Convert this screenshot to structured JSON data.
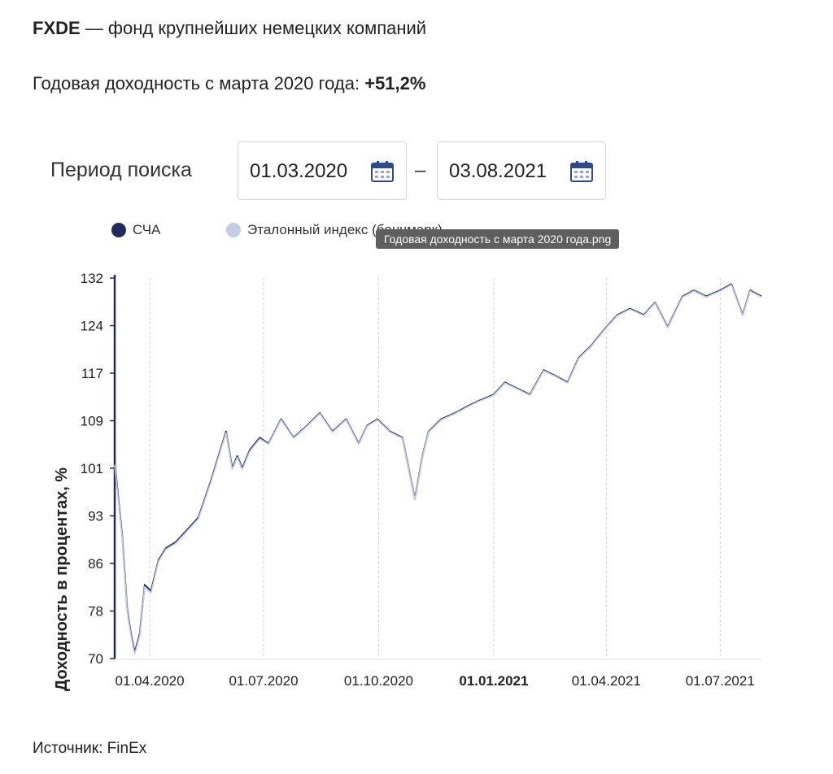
{
  "header": {
    "ticker": "FXDE",
    "title_rest": " — фонд крупнейших немецких компаний",
    "yield_label": "Годовая доходность с марта 2020 года: ",
    "yield_value": "+51,2%"
  },
  "period": {
    "label": "Период поиска",
    "from": "01.03.2020",
    "separator": "–",
    "to": "03.08.2021"
  },
  "tooltip": "Годовая доходность с марта 2020 года.png",
  "source": "Источник: FinEx",
  "colors": {
    "nav": "#1f2b5e",
    "benchmark": "#c3cbe6",
    "axis": "#1f2b5e"
  },
  "chart_data": {
    "type": "line",
    "ylabel": "Доходность в процентах, %",
    "ylim": [
      70,
      132
    ],
    "yticks": [
      "132",
      "124",
      "117",
      "109",
      "101",
      "93",
      "86",
      "78",
      "70"
    ],
    "xticks": [
      "01.04.2020",
      "01.07.2020",
      "01.10.2020",
      "01.01.2021",
      "01.04.2021",
      "01.07.2021"
    ],
    "xtick_bold": "01.01.2021",
    "grid": "vertical dashed",
    "legend": "top-left",
    "x_range": [
      "2020-03-04",
      "2021-08-03"
    ],
    "series": [
      {
        "name": "СЧА",
        "color": "#1f2b5e",
        "x": [
          "2020-03-04",
          "2020-03-10",
          "2020-03-14",
          "2020-03-17",
          "2020-03-20",
          "2020-03-24",
          "2020-03-28",
          "2020-04-02",
          "2020-04-08",
          "2020-04-14",
          "2020-04-22",
          "2020-05-01",
          "2020-05-10",
          "2020-05-20",
          "2020-06-01",
          "2020-06-06",
          "2020-06-10",
          "2020-06-14",
          "2020-06-20",
          "2020-06-28",
          "2020-07-05",
          "2020-07-15",
          "2020-07-25",
          "2020-08-05",
          "2020-08-15",
          "2020-08-25",
          "2020-09-05",
          "2020-09-15",
          "2020-09-22",
          "2020-09-30",
          "2020-10-10",
          "2020-10-20",
          "2020-10-26",
          "2020-10-30",
          "2020-11-05",
          "2020-11-10",
          "2020-11-20",
          "2020-12-01",
          "2020-12-10",
          "2020-12-20",
          "2021-01-01",
          "2021-01-10",
          "2021-01-20",
          "2021-01-30",
          "2021-02-10",
          "2021-02-20",
          "2021-03-01",
          "2021-03-10",
          "2021-03-20",
          "2021-04-01",
          "2021-04-10",
          "2021-04-20",
          "2021-05-01",
          "2021-05-10",
          "2021-05-20",
          "2021-06-01",
          "2021-06-10",
          "2021-06-20",
          "2021-07-01",
          "2021-07-10",
          "2021-07-19",
          "2021-07-25",
          "2021-08-03"
        ],
        "values": [
          102,
          90,
          78,
          74,
          71,
          74,
          82,
          81,
          86,
          88,
          89,
          91,
          93,
          99,
          107,
          101,
          103,
          101,
          104,
          106,
          105,
          109,
          106,
          108,
          110,
          107,
          109,
          105,
          108,
          109,
          107,
          106,
          100,
          96,
          103,
          107,
          109,
          110,
          111,
          112,
          113,
          115,
          114,
          113,
          117,
          116,
          115,
          119,
          121,
          124,
          126,
          127,
          126,
          128,
          124,
          129,
          130,
          129,
          130,
          131,
          126,
          130,
          129
        ]
      },
      {
        "name": "Эталонный индекс (бенчмарк)",
        "color": "#c3cbe6",
        "x": [
          "2020-03-04",
          "2020-03-10",
          "2020-03-14",
          "2020-03-17",
          "2020-03-20",
          "2020-03-24",
          "2020-03-28",
          "2020-04-02",
          "2020-04-08",
          "2020-04-14",
          "2020-04-22",
          "2020-05-01",
          "2020-05-10",
          "2020-05-20",
          "2020-06-01",
          "2020-06-06",
          "2020-06-10",
          "2020-06-14",
          "2020-06-20",
          "2020-06-28",
          "2020-07-05",
          "2020-07-15",
          "2020-07-25",
          "2020-08-05",
          "2020-08-15",
          "2020-08-25",
          "2020-09-05",
          "2020-09-15",
          "2020-09-22",
          "2020-09-30",
          "2020-10-10",
          "2020-10-20",
          "2020-10-26",
          "2020-10-30",
          "2020-11-05",
          "2020-11-10",
          "2020-11-20",
          "2020-12-01",
          "2020-12-10",
          "2020-12-20",
          "2021-01-01",
          "2021-01-10",
          "2021-01-20",
          "2021-01-30",
          "2021-02-10",
          "2021-02-20",
          "2021-03-01",
          "2021-03-10",
          "2021-03-20",
          "2021-04-01",
          "2021-04-10",
          "2021-04-20",
          "2021-05-01",
          "2021-05-10",
          "2021-05-20",
          "2021-06-01",
          "2021-06-10",
          "2021-06-20",
          "2021-07-01",
          "2021-07-10",
          "2021-07-19",
          "2021-07-25",
          "2021-08-03"
        ],
        "values": [
          101.6,
          89.7,
          77.7,
          73.7,
          70.7,
          73.7,
          81.7,
          80.7,
          85.8,
          87.8,
          88.8,
          90.8,
          92.8,
          98.8,
          106.8,
          100.8,
          102.8,
          100.8,
          103.8,
          105.8,
          104.9,
          108.9,
          105.9,
          107.9,
          109.9,
          106.9,
          108.9,
          104.9,
          107.9,
          108.9,
          106.9,
          105.9,
          99.9,
          95.9,
          102.9,
          106.9,
          108.9,
          109.9,
          110.9,
          111.9,
          112.9,
          114.9,
          113.9,
          112.9,
          116.9,
          115.9,
          114.9,
          118.9,
          120.9,
          123.9,
          125.9,
          126.9,
          125.9,
          127.9,
          123.9,
          128.9,
          129.9,
          128.9,
          129.9,
          130.9,
          125.9,
          129.9,
          128.9
        ]
      }
    ]
  }
}
